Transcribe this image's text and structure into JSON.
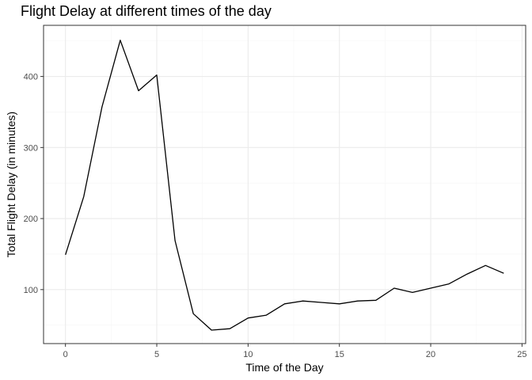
{
  "chart_data": {
    "type": "line",
    "title": "Flight Delay at different times of the day",
    "xlabel": "Time of the Day",
    "ylabel": "Total Flight Delay (in minutes)",
    "xlim": [
      -1.2,
      25.2
    ],
    "ylim": [
      24,
      472
    ],
    "x_ticks": [
      0,
      5,
      10,
      15,
      20,
      25
    ],
    "y_ticks": [
      100,
      200,
      300,
      400
    ],
    "x_minor": [
      2.5,
      7.5,
      12.5,
      17.5,
      22.5
    ],
    "y_minor": [
      50,
      150,
      250,
      350,
      450
    ],
    "grid": true,
    "colors": {
      "line": "#000000",
      "grid_major": "#ebebeb",
      "grid_minor": "#f5f5f5",
      "panel_border": "#333333",
      "tick_label": "#4d4d4d"
    },
    "series": [
      {
        "x": [
          0,
          1,
          2,
          3,
          4,
          5,
          6,
          7,
          8,
          9,
          10,
          11,
          12,
          13,
          14,
          15,
          16,
          17,
          18,
          19,
          20,
          21,
          22,
          23,
          24
        ],
        "y": [
          149,
          231,
          357,
          451,
          380,
          402,
          169,
          66,
          43,
          45,
          60,
          64,
          80,
          84,
          82,
          80,
          84,
          85,
          102,
          96,
          102,
          108,
          122,
          134,
          123
        ]
      }
    ]
  }
}
